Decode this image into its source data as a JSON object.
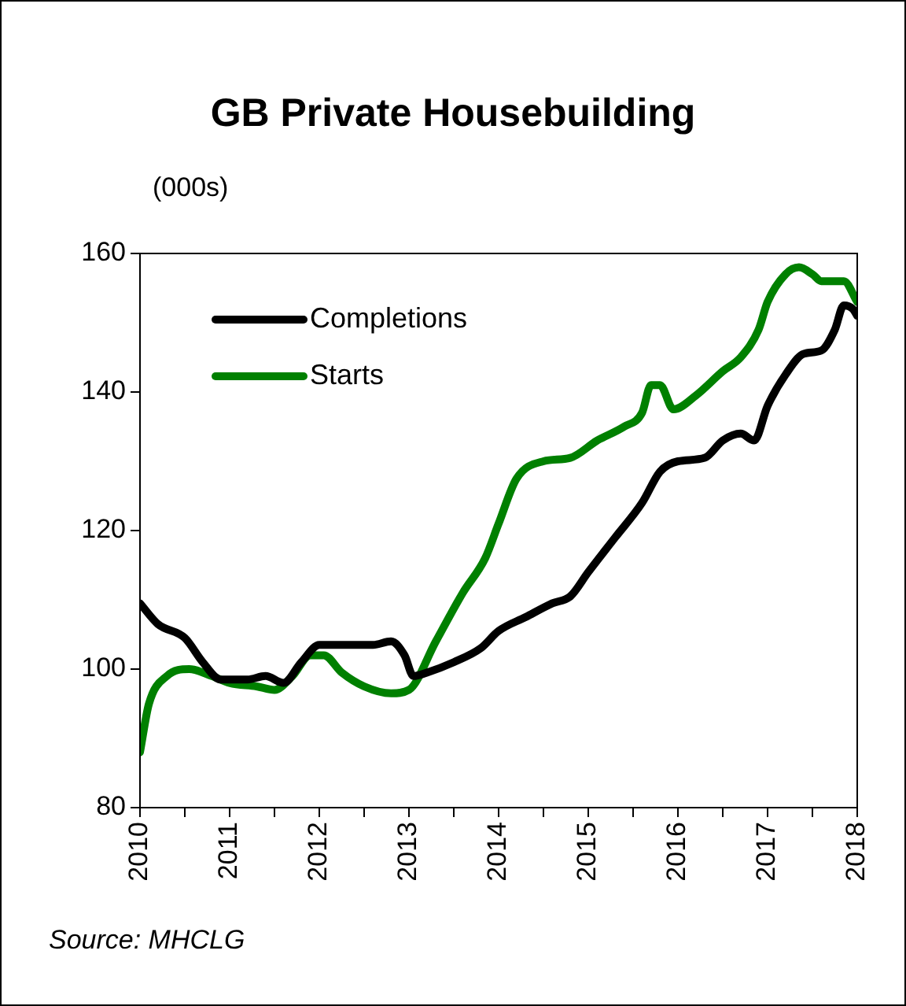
{
  "chart_data": {
    "type": "line",
    "title": "GB Private Housebuilding",
    "ylabel": "(000s)",
    "annotations": [
      "Source: MHCLG"
    ],
    "xlim": [
      2010,
      2018
    ],
    "xticks": [
      2010,
      {
        "value": 2010.5,
        "label": null
      },
      2011,
      {
        "value": 2011.5,
        "label": null
      },
      2012,
      {
        "value": 2012.5,
        "label": null
      },
      2013,
      {
        "value": 2013.5,
        "label": null
      },
      2014,
      {
        "value": 2014.5,
        "label": null
      },
      2015,
      {
        "value": 2015.5,
        "label": null
      },
      2016,
      {
        "value": 2016.5,
        "label": null
      },
      2017,
      {
        "value": 2017.5,
        "label": null
      },
      2018
    ],
    "ylim": [
      80,
      160
    ],
    "yticks": [
      80,
      100,
      120,
      140,
      160
    ],
    "grid": false,
    "legend": "top left",
    "marker": "none",
    "line_style": "solid",
    "series": [
      {
        "name": "Completions",
        "color": "#000000",
        "x": [
          2010,
          2010.2,
          2010.5,
          2010.7,
          2010.9,
          2011.2,
          2011.4,
          2011.6,
          2011.8,
          2012,
          2012.3,
          2012.6,
          2012.8,
          2012.95,
          2013.05,
          2013.2,
          2013.5,
          2013.8,
          2014,
          2014.3,
          2014.6,
          2014.8,
          2015,
          2015.3,
          2015.6,
          2015.8,
          2016,
          2016.3,
          2016.5,
          2016.7,
          2016.85,
          2017,
          2017.2,
          2017.4,
          2017.6,
          2017.75,
          2017.85,
          2017.95,
          2018
        ],
        "values": [
          109.5,
          106.5,
          104.5,
          101,
          98.5,
          98.5,
          99,
          98,
          101,
          103.5,
          103.5,
          103.5,
          104,
          102,
          99,
          99.5,
          101,
          103,
          105.5,
          107.5,
          109.5,
          110.5,
          114,
          119,
          124,
          128.5,
          130,
          130.5,
          133,
          134,
          133,
          138,
          142.5,
          145.5,
          146,
          149,
          152.5,
          152,
          151
        ]
      },
      {
        "name": "Starts",
        "color": "#008000",
        "x": [
          2010,
          2010.1,
          2010.3,
          2010.55,
          2010.8,
          2011,
          2011.3,
          2011.5,
          2011.7,
          2011.9,
          2012.05,
          2012.25,
          2012.5,
          2012.8,
          2013,
          2013.3,
          2013.6,
          2013.85,
          2014,
          2014.2,
          2014.5,
          2014.8,
          2015.1,
          2015.4,
          2015.6,
          2015.7,
          2015.8,
          2015.95,
          2016.2,
          2016.5,
          2016.7,
          2016.9,
          2017,
          2017.2,
          2017.35,
          2017.5,
          2017.6,
          2017.85,
          2018
        ],
        "values": [
          88,
          95,
          99,
          100,
          99,
          98,
          97.5,
          97,
          99,
          102,
          102,
          99.5,
          97.5,
          96.5,
          97,
          104,
          111,
          116,
          121,
          127.5,
          130,
          130.5,
          133,
          135,
          137,
          141,
          141,
          137.5,
          139.5,
          143,
          145,
          149,
          153,
          157,
          158,
          157,
          156,
          156,
          153
        ]
      }
    ]
  }
}
